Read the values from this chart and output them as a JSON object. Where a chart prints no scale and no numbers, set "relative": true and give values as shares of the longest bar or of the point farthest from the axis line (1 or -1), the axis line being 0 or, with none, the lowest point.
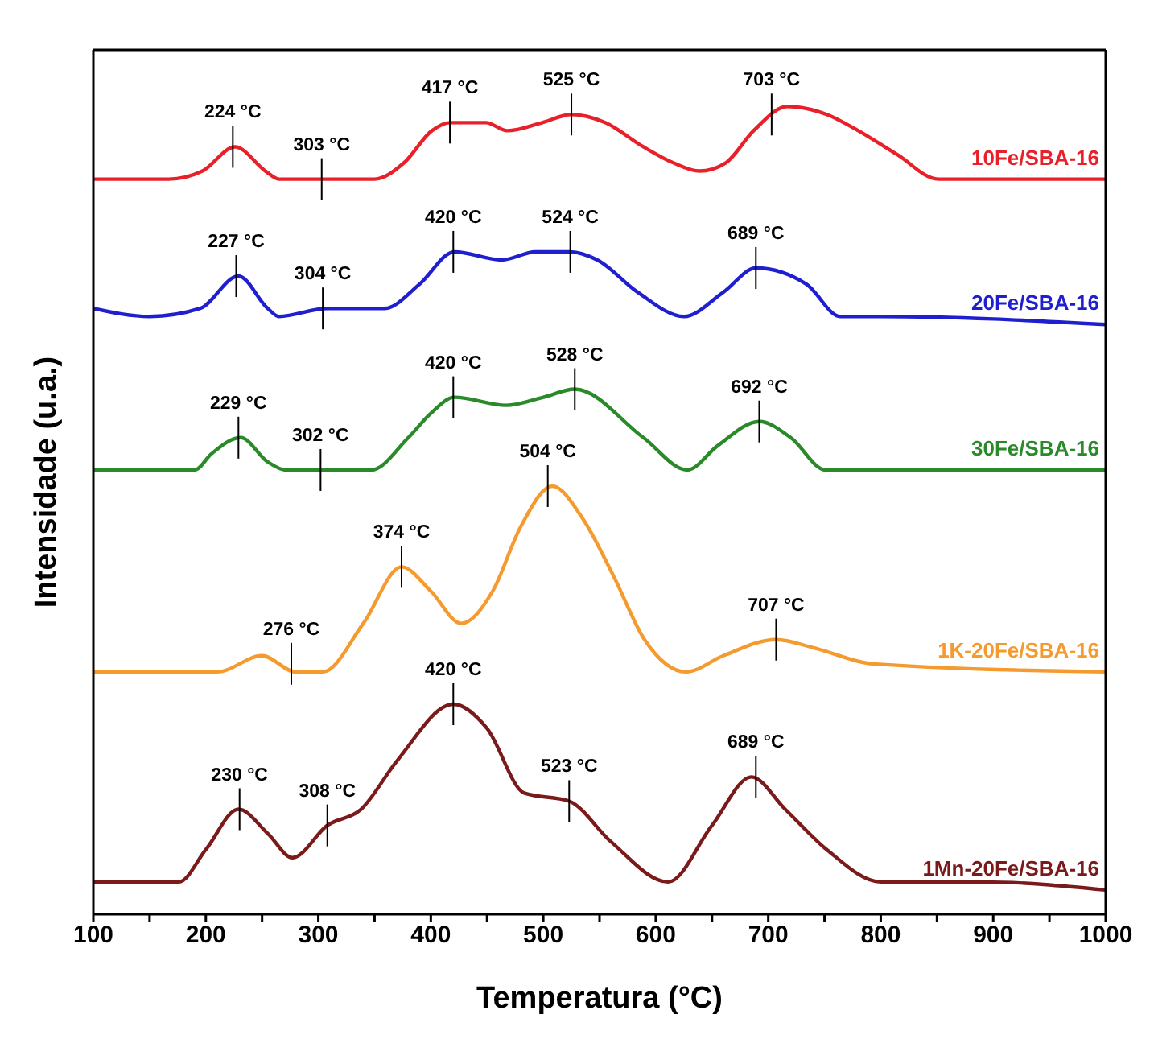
{
  "chart_data": {
    "type": "line",
    "relative": true,
    "xlabel": "Temperatura (°C)",
    "ylabel": "Intensidade (u.a.)",
    "xlim": [
      100,
      1000
    ],
    "xticks": [
      100,
      {
        "value": 150,
        "label": null
      },
      200,
      {
        "value": 250,
        "label": null
      },
      300,
      {
        "value": 350,
        "label": null
      },
      400,
      {
        "value": 450,
        "label": null
      },
      500,
      {
        "value": 550,
        "label": null
      },
      600,
      {
        "value": 650,
        "label": null
      },
      700,
      {
        "value": 750,
        "label": null
      },
      800,
      {
        "value": 850,
        "label": null
      },
      900,
      {
        "value": 950,
        "label": null
      },
      1000
    ],
    "grid": false,
    "legend": false,
    "marker": "none",
    "line_style": "solid",
    "series": [
      {
        "name": "10Fe/SBA-16",
        "color": "#e8202a",
        "x": [
          100,
          167,
          197,
          226,
          253,
          265,
          307,
          350,
          376,
          401,
          417,
          449,
          468,
          499,
          525,
          555,
          589,
          616,
          639,
          662,
          687,
          717,
          752,
          780,
          815,
          851,
          876,
          1000
        ],
        "values": [
          0.91,
          0.91,
          0.92,
          0.95,
          0.92,
          0.91,
          0.91,
          0.91,
          0.93,
          0.97,
          0.98,
          0.98,
          0.97,
          0.98,
          0.99,
          0.98,
          0.95,
          0.93,
          0.92,
          0.93,
          0.97,
          1.0,
          0.99,
          0.97,
          0.94,
          0.91,
          0.91,
          0.91
        ]
      },
      {
        "name": "20Fe/SBA-16",
        "color": "#1f1fd0",
        "x": [
          100,
          150,
          195,
          229,
          255,
          265,
          308,
          359,
          390,
          421,
          463,
          493,
          524,
          548,
          584,
          625,
          660,
          689,
          734,
          764,
          800,
          1000
        ],
        "values": [
          0.75,
          0.74,
          0.75,
          0.79,
          0.75,
          0.74,
          0.75,
          0.75,
          0.78,
          0.82,
          0.81,
          0.82,
          0.82,
          0.81,
          0.77,
          0.74,
          0.77,
          0.8,
          0.78,
          0.74,
          0.74,
          0.73
        ]
      },
      {
        "name": "30Fe/SBA-16",
        "color": "#2a8a2a",
        "x": [
          100,
          190,
          205,
          231,
          255,
          271,
          302,
          347,
          380,
          400,
          421,
          467,
          500,
          528,
          589,
          628,
          655,
          692,
          720,
          751,
          1000
        ],
        "values": [
          0.55,
          0.55,
          0.57,
          0.59,
          0.56,
          0.55,
          0.55,
          0.55,
          0.59,
          0.62,
          0.64,
          0.63,
          0.64,
          0.65,
          0.59,
          0.55,
          0.58,
          0.61,
          0.59,
          0.55,
          0.55
        ]
      },
      {
        "name": "1K-20Fe/SBA-16",
        "color": "#f59a2f",
        "x": [
          100,
          210,
          250,
          280,
          304,
          340,
          374,
          400,
          427,
          455,
          480,
          508,
          535,
          562,
          590,
          627,
          660,
          707,
          740,
          793,
          1000
        ],
        "values": [
          0.3,
          0.3,
          0.32,
          0.3,
          0.3,
          0.36,
          0.43,
          0.4,
          0.36,
          0.4,
          0.48,
          0.53,
          0.49,
          0.42,
          0.34,
          0.3,
          0.32,
          0.34,
          0.33,
          0.31,
          0.3
        ]
      },
      {
        "name": "1Mn-20Fe/SBA-16",
        "color": "#7a1a1a",
        "x": [
          100,
          176,
          200,
          229,
          255,
          277,
          308,
          338,
          370,
          420,
          450,
          483,
          523,
          560,
          611,
          650,
          685,
          715,
          752,
          800,
          890,
          1000
        ],
        "values": [
          0.04,
          0.04,
          0.08,
          0.13,
          0.1,
          0.07,
          0.11,
          0.13,
          0.19,
          0.26,
          0.23,
          0.15,
          0.14,
          0.09,
          0.04,
          0.11,
          0.17,
          0.13,
          0.08,
          0.04,
          0.04,
          0.03
        ]
      }
    ],
    "annotations": [
      {
        "text": "224 °C",
        "x": 224,
        "y": 0.95
      },
      {
        "text": "303 °C",
        "x": 303,
        "y": 0.91
      },
      {
        "text": "417 °C",
        "x": 417,
        "y": 0.98
      },
      {
        "text": "525 °C",
        "x": 525,
        "y": 0.99
      },
      {
        "text": "703 °C",
        "x": 703,
        "y": 0.99
      },
      {
        "text": "227 °C",
        "x": 227,
        "y": 0.79
      },
      {
        "text": "304 °C",
        "x": 304,
        "y": 0.75
      },
      {
        "text": "420 °C",
        "x": 420,
        "y": 0.82
      },
      {
        "text": "524 °C",
        "x": 524,
        "y": 0.82
      },
      {
        "text": "689 °C",
        "x": 689,
        "y": 0.8
      },
      {
        "text": "229 °C",
        "x": 229,
        "y": 0.59
      },
      {
        "text": "302 °C",
        "x": 302,
        "y": 0.55
      },
      {
        "text": "420 °C",
        "x": 420,
        "y": 0.64
      },
      {
        "text": "528 °C",
        "x": 528,
        "y": 0.65
      },
      {
        "text": "692 °C",
        "x": 692,
        "y": 0.61
      },
      {
        "text": "276 °C",
        "x": 276,
        "y": 0.31
      },
      {
        "text": "374 °C",
        "x": 374,
        "y": 0.43
      },
      {
        "text": "504 °C",
        "x": 504,
        "y": 0.53
      },
      {
        "text": "707 °C",
        "x": 707,
        "y": 0.34
      },
      {
        "text": "230 °C",
        "x": 230,
        "y": 0.13
      },
      {
        "text": "308 °C",
        "x": 308,
        "y": 0.11
      },
      {
        "text": "420 °C",
        "x": 420,
        "y": 0.26
      },
      {
        "text": "523 °C",
        "x": 523,
        "y": 0.14
      },
      {
        "text": "689 °C",
        "x": 689,
        "y": 0.17
      }
    ]
  }
}
